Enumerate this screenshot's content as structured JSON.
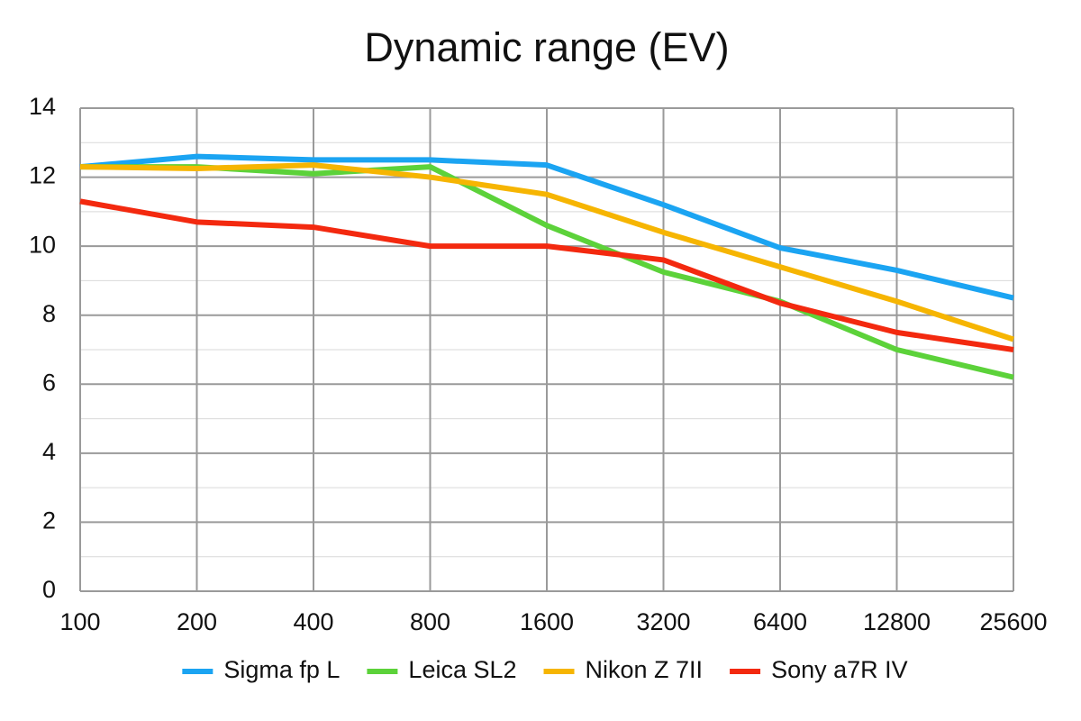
{
  "chart_data": {
    "type": "line",
    "title": "Dynamic range (EV)",
    "categories": [
      "100",
      "200",
      "400",
      "800",
      "1600",
      "3200",
      "6400",
      "12800",
      "25600"
    ],
    "series": [
      {
        "name": "Sigma fp L",
        "color": "#1ba4f2",
        "values": [
          12.3,
          12.6,
          12.5,
          12.5,
          12.35,
          11.2,
          9.95,
          9.3,
          8.5
        ]
      },
      {
        "name": "Leica SL2",
        "color": "#5cd23a",
        "values": [
          12.3,
          12.3,
          12.1,
          12.3,
          10.6,
          9.25,
          8.4,
          7.0,
          6.2
        ]
      },
      {
        "name": "Nikon Z 7II",
        "color": "#f6b502",
        "values": [
          12.3,
          12.25,
          12.35,
          12.0,
          11.5,
          10.4,
          9.4,
          8.4,
          7.3
        ]
      },
      {
        "name": "Sony a7R IV",
        "color": "#f3290f",
        "values": [
          11.3,
          10.7,
          10.55,
          10.0,
          10.0,
          9.6,
          8.35,
          7.5,
          7.0
        ]
      }
    ],
    "ylim": [
      0,
      14
    ],
    "yticks": [
      0,
      2,
      4,
      6,
      8,
      10,
      12,
      14
    ],
    "grid": true,
    "legend": "bottom"
  }
}
